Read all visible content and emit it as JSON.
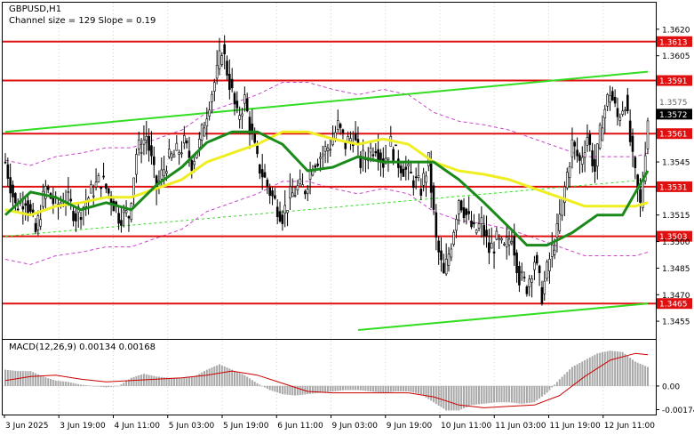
{
  "chart_data": {
    "type": "candlestick",
    "symbol_label": "GBPUSD,H1",
    "channel_label": "Channel size = 129 Slope = 0.19",
    "price_axis": {
      "range": [
        1.3445,
        1.3635
      ],
      "ticks": [
        {
          "value": 1.362,
          "label": "1.3620"
        },
        {
          "value": 1.3605,
          "label": "1.3605"
        },
        {
          "value": 1.3545,
          "label": "1.3545"
        },
        {
          "value": 1.3515,
          "label": "1.3515"
        },
        {
          "value": 1.35,
          "label": "1.3500"
        },
        {
          "value": 1.3485,
          "label": "1.3485"
        },
        {
          "value": 1.347,
          "label": "1.3470"
        },
        {
          "value": 1.3455,
          "label": "1.3455"
        }
      ]
    },
    "levels": [
      {
        "value": 1.3613,
        "label": "1.3613"
      },
      {
        "value": 1.3591,
        "label": "1.3591"
      },
      {
        "value": 1.3561,
        "label": "1.3561"
      },
      {
        "value": 1.3531,
        "label": "1.3531"
      },
      {
        "value": 1.3503,
        "label": "1.3503"
      },
      {
        "value": 1.3465,
        "label": "1.3465"
      }
    ],
    "current_price": {
      "value": 1.3572,
      "label": "1.3572"
    },
    "secondary_price_label": "1.3575",
    "time_labels": [
      "3 Jun 2025",
      "3 Jun 19:00",
      "4 Jun 11:00",
      "5 Jun 03:00",
      "5 Jun 19:00",
      "6 Jun 11:00",
      "9 Jun 03:00",
      "9 Jun 19:00",
      "10 Jun 11:00",
      "11 Jun 03:00",
      "11 Jun 19:00",
      "12 Jun 11:00"
    ],
    "price_path": [
      [
        0,
        1.3545
      ],
      [
        4,
        1.352
      ],
      [
        8,
        1.3525
      ],
      [
        12,
        1.3505
      ],
      [
        16,
        1.353
      ],
      [
        20,
        1.352
      ],
      [
        24,
        1.3525
      ],
      [
        28,
        1.3515
      ],
      [
        31,
        1.352
      ],
      [
        35,
        1.353
      ],
      [
        38,
        1.3535
      ],
      [
        42,
        1.3525
      ],
      [
        45,
        1.3515
      ],
      [
        49,
        1.3515
      ],
      [
        52,
        1.355
      ],
      [
        56,
        1.356
      ],
      [
        60,
        1.353
      ],
      [
        64,
        1.3545
      ],
      [
        68,
        1.355
      ],
      [
        71,
        1.3555
      ],
      [
        74,
        1.3545
      ],
      [
        77,
        1.3555
      ],
      [
        81,
        1.358
      ],
      [
        84,
        1.3595
      ],
      [
        86,
        1.361
      ],
      [
        89,
        1.359
      ],
      [
        92,
        1.357
      ],
      [
        95,
        1.358
      ],
      [
        97,
        1.3565
      ],
      [
        100,
        1.3545
      ],
      [
        103,
        1.3535
      ],
      [
        106,
        1.3525
      ],
      [
        110,
        1.3515
      ],
      [
        113,
        1.3525
      ],
      [
        116,
        1.353
      ],
      [
        119,
        1.353
      ],
      [
        122,
        1.3545
      ],
      [
        126,
        1.355
      ],
      [
        129,
        1.3555
      ],
      [
        132,
        1.3565
      ],
      [
        135,
        1.3555
      ],
      [
        138,
        1.356
      ],
      [
        141,
        1.3545
      ],
      [
        144,
        1.355
      ],
      [
        147,
        1.3555
      ],
      [
        150,
        1.3545
      ],
      [
        153,
        1.3555
      ],
      [
        156,
        1.3545
      ],
      [
        159,
        1.354
      ],
      [
        162,
        1.3535
      ],
      [
        165,
        1.353
      ],
      [
        168,
        1.3545
      ],
      [
        171,
        1.35
      ],
      [
        174,
        1.348
      ],
      [
        177,
        1.35
      ],
      [
        180,
        1.3525
      ],
      [
        183,
        1.3515
      ],
      [
        186,
        1.3505
      ],
      [
        189,
        1.351
      ],
      [
        192,
        1.3495
      ],
      [
        195,
        1.35
      ],
      [
        198,
        1.3495
      ],
      [
        201,
        1.3505
      ],
      [
        204,
        1.348
      ],
      [
        207,
        1.3475
      ],
      [
        210,
        1.349
      ],
      [
        213,
        1.347
      ],
      [
        216,
        1.349
      ],
      [
        219,
        1.3505
      ],
      [
        222,
        1.353
      ],
      [
        225,
        1.3555
      ],
      [
        228,
        1.3545
      ],
      [
        231,
        1.356
      ],
      [
        234,
        1.354
      ],
      [
        237,
        1.357
      ],
      [
        240,
        1.3585
      ],
      [
        243,
        1.357
      ],
      [
        246,
        1.358
      ],
      [
        249,
        1.3545
      ],
      [
        252,
        1.352
      ],
      [
        255,
        1.357
      ]
    ],
    "ma_green": [
      [
        0,
        1.3515
      ],
      [
        10,
        1.3528
      ],
      [
        20,
        1.3525
      ],
      [
        30,
        1.3518
      ],
      [
        40,
        1.3522
      ],
      [
        50,
        1.3518
      ],
      [
        60,
        1.3532
      ],
      [
        70,
        1.3542
      ],
      [
        80,
        1.3556
      ],
      [
        90,
        1.3562
      ],
      [
        100,
        1.3562
      ],
      [
        110,
        1.3555
      ],
      [
        120,
        1.354
      ],
      [
        130,
        1.3542
      ],
      [
        140,
        1.3548
      ],
      [
        150,
        1.3545
      ],
      [
        160,
        1.3545
      ],
      [
        170,
        1.3545
      ],
      [
        180,
        1.3535
      ],
      [
        190,
        1.3522
      ],
      [
        200,
        1.3508
      ],
      [
        207,
        1.3498
      ],
      [
        215,
        1.3498
      ],
      [
        225,
        1.3505
      ],
      [
        235,
        1.3515
      ],
      [
        245,
        1.3515
      ],
      [
        255,
        1.354
      ]
    ],
    "ma_yellow": [
      [
        0,
        1.3518
      ],
      [
        10,
        1.3515
      ],
      [
        20,
        1.352
      ],
      [
        30,
        1.3522
      ],
      [
        40,
        1.3525
      ],
      [
        50,
        1.3525
      ],
      [
        60,
        1.353
      ],
      [
        70,
        1.3535
      ],
      [
        80,
        1.3545
      ],
      [
        90,
        1.355
      ],
      [
        100,
        1.3555
      ],
      [
        110,
        1.3562
      ],
      [
        120,
        1.3562
      ],
      [
        130,
        1.3558
      ],
      [
        140,
        1.3555
      ],
      [
        150,
        1.3558
      ],
      [
        160,
        1.3555
      ],
      [
        170,
        1.3545
      ],
      [
        180,
        1.354
      ],
      [
        190,
        1.3538
      ],
      [
        200,
        1.3535
      ],
      [
        210,
        1.353
      ],
      [
        220,
        1.3525
      ],
      [
        230,
        1.352
      ],
      [
        240,
        1.352
      ],
      [
        250,
        1.352
      ],
      [
        255,
        1.3522
      ]
    ],
    "channel_upper": [
      [
        0,
        1.3562
      ],
      [
        255,
        1.3596
      ]
    ],
    "channel_lower": [
      [
        140,
        1.345
      ],
      [
        255,
        1.3465
      ]
    ],
    "channel_mid": [
      [
        0,
        1.3503
      ],
      [
        255,
        1.3535
      ]
    ],
    "macd": {
      "label": "MACD(12,26,9) 0.00134 0.00168",
      "range": [
        -0.0021,
        0.0034
      ],
      "ticks": [
        {
          "value": 0.0,
          "label": "0.00"
        },
        {
          "value": -0.00174,
          "label": "-0.00174"
        }
      ],
      "histogram": [
        [
          0,
          0.0012
        ],
        [
          5,
          0.0011
        ],
        [
          10,
          0.0011
        ],
        [
          15,
          0.0007
        ],
        [
          20,
          0.0004
        ],
        [
          25,
          0.0003
        ],
        [
          30,
          0.0001
        ],
        [
          35,
          0.0
        ],
        [
          40,
          -0.0001
        ],
        [
          45,
          0.0
        ],
        [
          50,
          0.0006
        ],
        [
          55,
          0.0009
        ],
        [
          60,
          0.0007
        ],
        [
          65,
          0.0006
        ],
        [
          70,
          0.0006
        ],
        [
          75,
          0.0007
        ],
        [
          80,
          0.0012
        ],
        [
          85,
          0.0016
        ],
        [
          90,
          0.0012
        ],
        [
          95,
          0.0008
        ],
        [
          100,
          0.0002
        ],
        [
          105,
          -0.0003
        ],
        [
          110,
          -0.0006
        ],
        [
          115,
          -0.0007
        ],
        [
          120,
          -0.0006
        ],
        [
          125,
          -0.0005
        ],
        [
          130,
          -0.0004
        ],
        [
          135,
          -0.0003
        ],
        [
          140,
          -0.0003
        ],
        [
          145,
          -0.0004
        ],
        [
          150,
          -0.0005
        ],
        [
          155,
          -0.0004
        ],
        [
          160,
          -0.0004
        ],
        [
          165,
          -0.0006
        ],
        [
          170,
          -0.0012
        ],
        [
          175,
          -0.0018
        ],
        [
          180,
          -0.0018
        ],
        [
          185,
          -0.0014
        ],
        [
          190,
          -0.0013
        ],
        [
          195,
          -0.0012
        ],
        [
          200,
          -0.0012
        ],
        [
          205,
          -0.0013
        ],
        [
          210,
          -0.0012
        ],
        [
          215,
          -0.0005
        ],
        [
          220,
          0.0005
        ],
        [
          225,
          0.0014
        ],
        [
          230,
          0.0019
        ],
        [
          235,
          0.0024
        ],
        [
          240,
          0.0026
        ],
        [
          245,
          0.0025
        ],
        [
          250,
          0.0018
        ],
        [
          255,
          0.0014
        ]
      ],
      "signal": [
        [
          0,
          0.0004
        ],
        [
          10,
          0.0007
        ],
        [
          20,
          0.0008
        ],
        [
          30,
          0.0005
        ],
        [
          40,
          0.0003
        ],
        [
          50,
          0.0004
        ],
        [
          60,
          0.0005
        ],
        [
          70,
          0.0006
        ],
        [
          80,
          0.0008
        ],
        [
          90,
          0.0011
        ],
        [
          100,
          0.0008
        ],
        [
          110,
          0.0002
        ],
        [
          120,
          -0.0004
        ],
        [
          130,
          -0.0005
        ],
        [
          140,
          -0.0005
        ],
        [
          150,
          -0.0005
        ],
        [
          160,
          -0.0005
        ],
        [
          170,
          -0.0008
        ],
        [
          180,
          -0.0014
        ],
        [
          190,
          -0.0016
        ],
        [
          200,
          -0.0015
        ],
        [
          210,
          -0.0014
        ],
        [
          220,
          -0.0007
        ],
        [
          230,
          0.0007
        ],
        [
          240,
          0.0019
        ],
        [
          250,
          0.0024
        ],
        [
          255,
          0.0023
        ]
      ]
    },
    "colors": {
      "level_line": "#e01010",
      "level_label_bg": "#e01010",
      "trend_line": "#33dd22",
      "ma_green": "#1a8a1a",
      "ma_yellow": "#eeee22",
      "candle": "#000000",
      "envelope": "#cc44cc",
      "macd_hist": "#a8a8a8",
      "macd_signal": "#cc0000",
      "grid": "#d0d0d0",
      "current_price_bg": "#000000"
    }
  }
}
